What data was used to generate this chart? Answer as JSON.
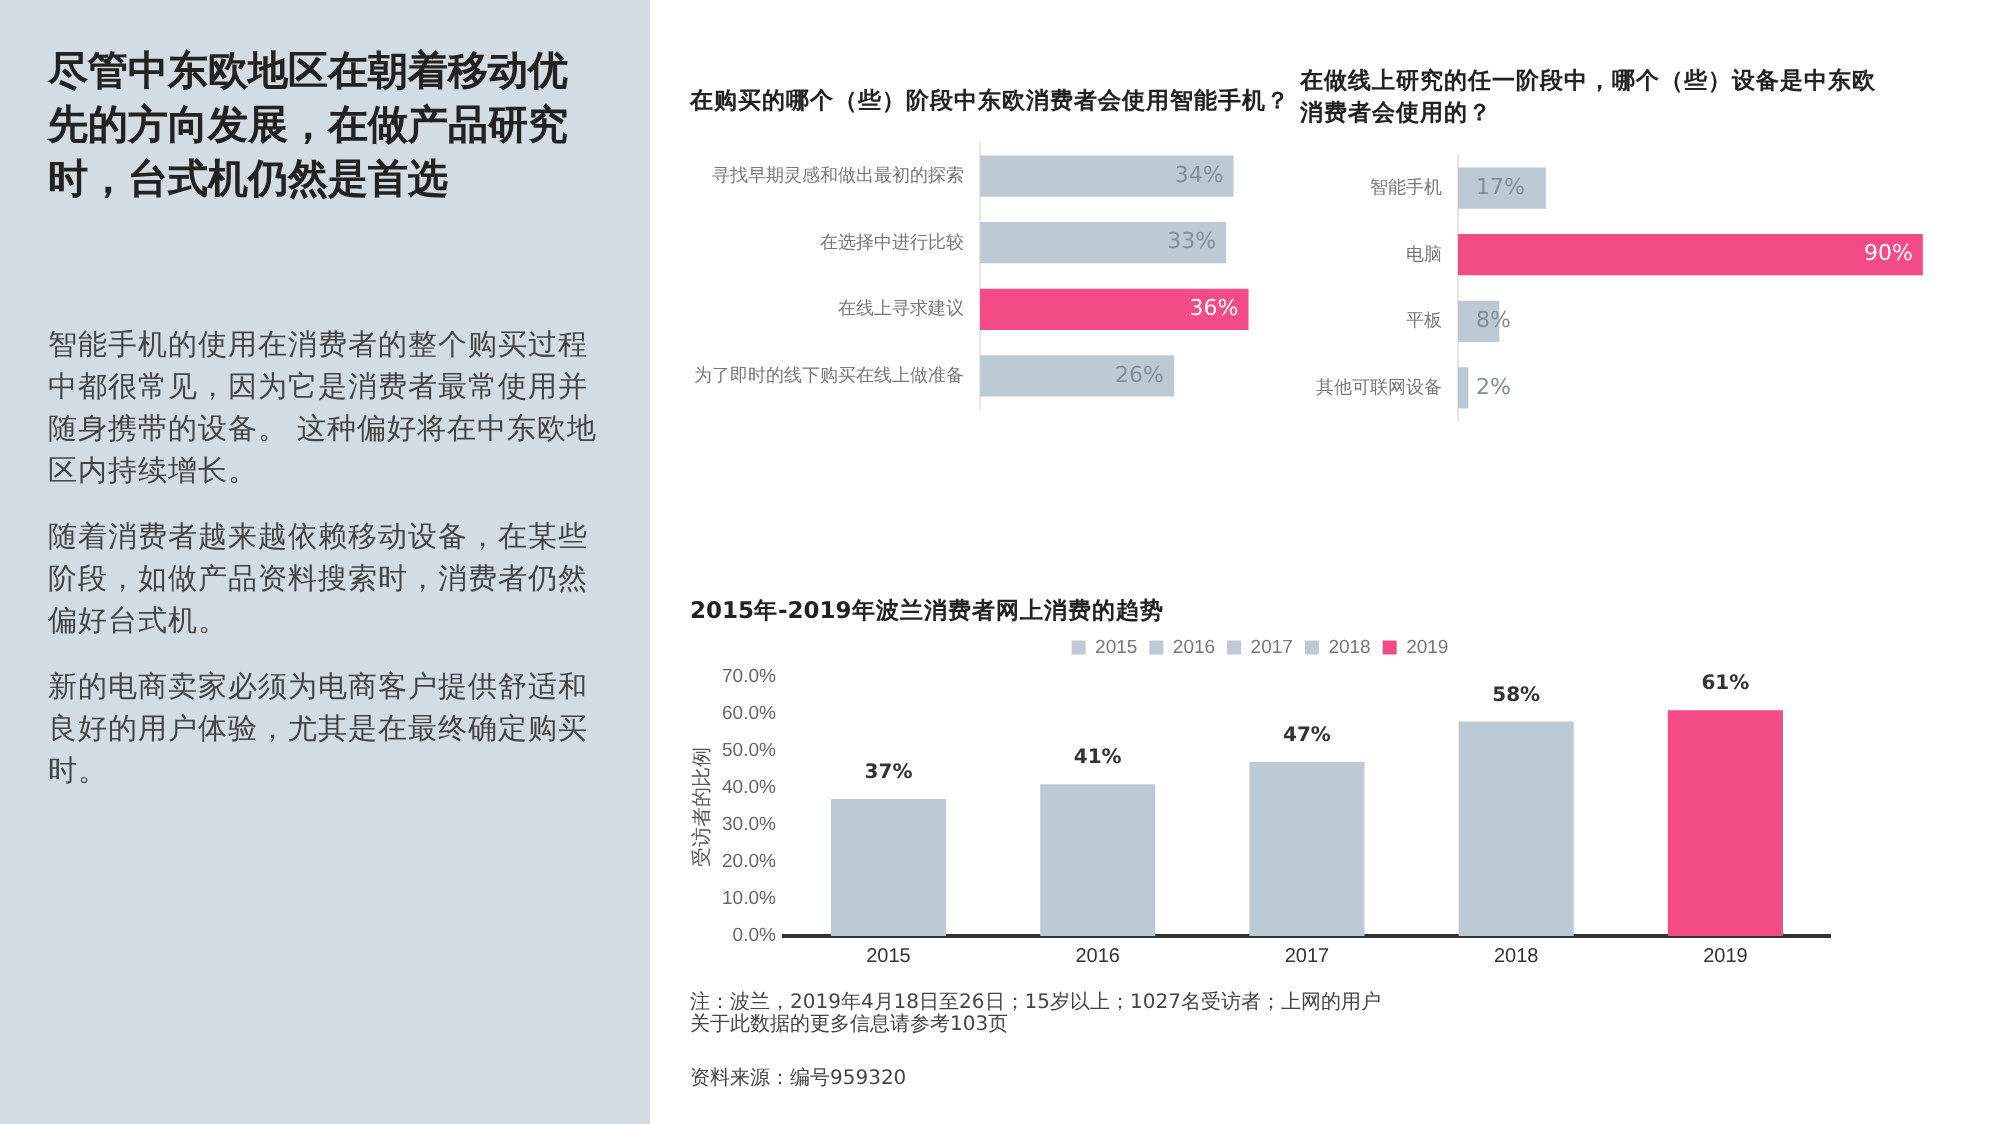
{
  "chart_data": [
    {
      "type": "other",
      "title": "尽管中东欧地区在朝着移动优先的方向发展，在做产品研究时，台式机仍然是首选",
      "annotations": [
        "智能手机的使用在消费者的整个购买过程中都很常见，因为它是消费者最常使用并随身携带的设备。 这种偏好将在中东欧地区内持续增长。",
        "随着消费者越来越依赖移动设备，在某些阶段，如做产品资料搜索时，消费者仍然偏好台式机。",
        "新的电商卖家必须为电商客户提供舒适和良好的用户体验，尤其是在最终确定购买时。"
      ]
    },
    {
      "type": "bar",
      "orientation": "horizontal",
      "title": "在购买的哪个（些）阶段中东欧消费者会使用智能手机？",
      "categories": [
        "寻找早期灵感和做出最初的探索",
        "在选择中进行比较",
        "在线上寻求建议",
        "为了即时的线下购买在线上做准备"
      ],
      "values": [
        34,
        33,
        36,
        26
      ],
      "colors": [
        "#bdcad3",
        "#bdcad3",
        "#f24b86",
        "#bdcad3"
      ],
      "value_labels": [
        "34%",
        "33%",
        "36%",
        "26%"
      ]
    },
    {
      "type": "bar",
      "orientation": "horizontal",
      "title": "在做线上研究的任一阶段中，哪个（些）设备是中东欧消费者会使用的？",
      "categories": [
        "智能手机",
        "电脑",
        "平板",
        "其他可联网设备"
      ],
      "values": [
        17,
        90,
        8,
        2
      ],
      "colors": [
        "#bdcad3",
        "#f24b86",
        "#bdcad3",
        "#bdcad3"
      ],
      "value_labels": [
        "17%",
        "90%",
        "8%",
        "2%"
      ]
    },
    {
      "type": "bar",
      "title": "2015年-2019年波兰消费者网上消费的趋势",
      "ylabel": "受访者的比例",
      "categories": [
        "2015",
        "2016",
        "2017",
        "2018",
        "2019"
      ],
      "series": [
        {
          "name": "2015",
          "color": "#bdcad3",
          "values": [
            37,
            null,
            null,
            null,
            null
          ]
        },
        {
          "name": "2016",
          "color": "#bdcad3",
          "values": [
            null,
            41,
            null,
            null,
            null
          ]
        },
        {
          "name": "2017",
          "color": "#bdcad3",
          "values": [
            null,
            null,
            47,
            null,
            null
          ]
        },
        {
          "name": "2018",
          "color": "#bdcad3",
          "values": [
            null,
            null,
            null,
            58,
            null
          ]
        },
        {
          "name": "2019",
          "color": "#f24b86",
          "values": [
            null,
            null,
            null,
            null,
            61
          ]
        }
      ],
      "value_labels": [
        "37%",
        "41%",
        "47%",
        "58%",
        "61%"
      ],
      "legend": "top",
      "ylim": [
        0,
        70
      ],
      "yticks": [
        {
          "value": 0,
          "label": "0.0%"
        },
        {
          "value": 10,
          "label": "10.0%"
        },
        {
          "value": 20,
          "label": "20.0%"
        },
        {
          "value": 30,
          "label": "30.0%"
        },
        {
          "value": 40,
          "label": "40.0%"
        },
        {
          "value": 50,
          "label": "50.0%"
        },
        {
          "value": 60,
          "label": "60.0%"
        },
        {
          "value": 70,
          "label": "70.0%"
        }
      ],
      "annotations": [
        "注：波兰，2019年4月18日至26日；15岁以上；1027名受访者；上网的用户",
        "关于此数据的更多信息请参考103页",
        "资料来源：编号959320"
      ]
    }
  ]
}
